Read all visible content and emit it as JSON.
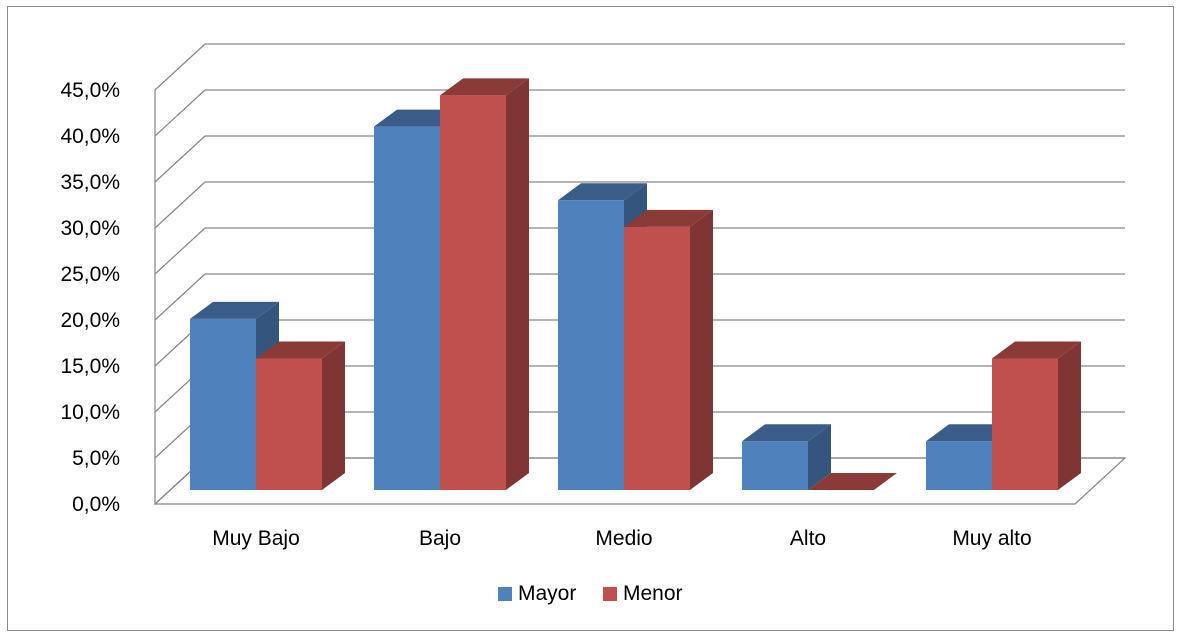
{
  "chart_data": {
    "type": "bar",
    "style": "3d-clustered-column",
    "categories": [
      "Muy Bajo",
      "Bajo",
      "Medio",
      "Alto",
      "Muy alto"
    ],
    "series": [
      {
        "name": "Mayor",
        "values": [
          18.6,
          39.5,
          31.5,
          5.3,
          5.3
        ],
        "color": "#4F81BD"
      },
      {
        "name": "Menor",
        "values": [
          14.3,
          42.9,
          28.6,
          0.0,
          14.3
        ],
        "color": "#C0504D"
      }
    ],
    "yticks": [
      "0,0%",
      "5,0%",
      "10,0%",
      "15,0%",
      "20,0%",
      "25,0%",
      "30,0%",
      "35,0%",
      "40,0%",
      "45,0%"
    ],
    "ylim": [
      0,
      45
    ],
    "grid": true,
    "legend": "bottom",
    "title": "",
    "xlabel": "",
    "ylabel": ""
  }
}
